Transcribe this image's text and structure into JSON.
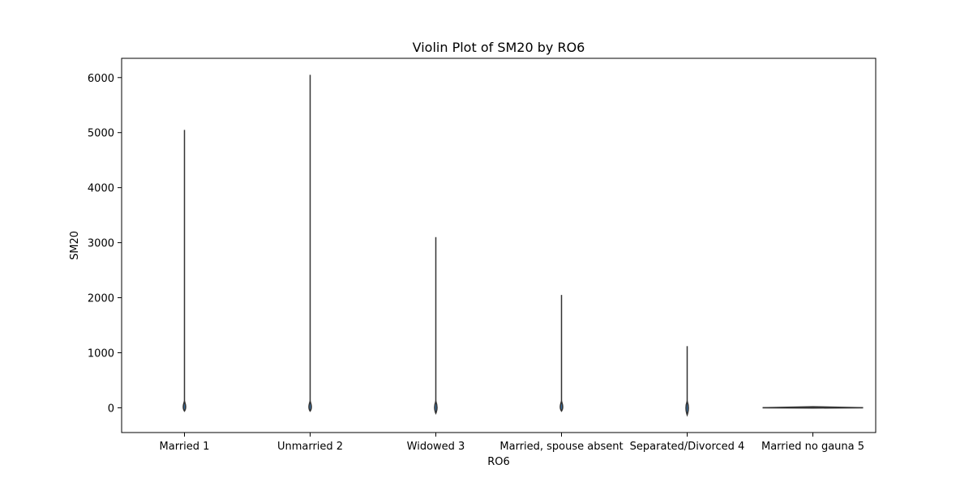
{
  "chart_data": {
    "type": "violin",
    "title": "Violin Plot of SM20 by RO6",
    "xlabel": "RO6",
    "ylabel": "SM20",
    "ylim": [
      -450,
      6350
    ],
    "yticks": [
      0,
      1000,
      2000,
      3000,
      4000,
      5000,
      6000
    ],
    "grid": false,
    "legend": "none",
    "categories": [
      "Married 1",
      "Unmarried 2",
      "Widowed 3",
      "Married, spouse absent",
      "Separated/Divorced 4",
      "Married no gauna 5"
    ],
    "violins": [
      {
        "category": "Married 1",
        "min": -60,
        "max": 5050
      },
      {
        "category": "Unmarried 2",
        "min": -60,
        "max": 6050
      },
      {
        "category": "Widowed 3",
        "min": -100,
        "max": 3100
      },
      {
        "category": "Married, spouse absent",
        "min": -60,
        "max": 2050
      },
      {
        "category": "Separated/Divorced 4",
        "min": -130,
        "max": 1120
      },
      {
        "category": "Married no gauna 5",
        "min": -5,
        "max": 20
      }
    ],
    "colors": {
      "violin_fill": "#3a6fa0",
      "violin_edge": "#333333",
      "axis": "#000000"
    }
  }
}
